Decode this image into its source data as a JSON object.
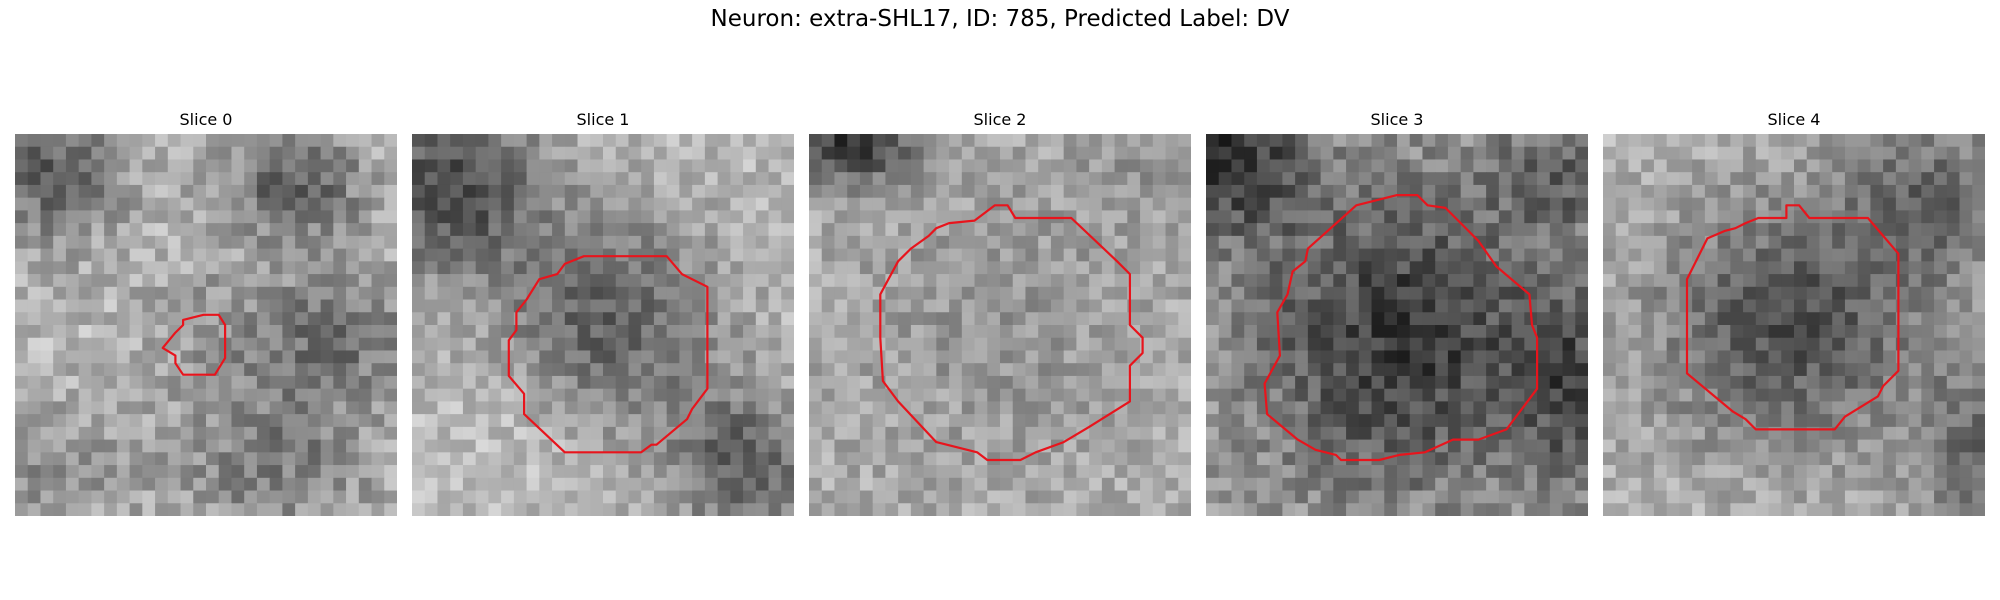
{
  "figure": {
    "title": "Neuron: extra-SHL17, ID: 785, Predicted Label: DV"
  },
  "colors": {
    "contour": "#e8141c",
    "background": "#ffffff"
  },
  "slices": [
    {
      "title": "Slice 0"
    },
    {
      "title": "Slice 1"
    },
    {
      "title": "Slice 2"
    },
    {
      "title": "Slice 3"
    },
    {
      "title": "Slice 4"
    }
  ]
}
